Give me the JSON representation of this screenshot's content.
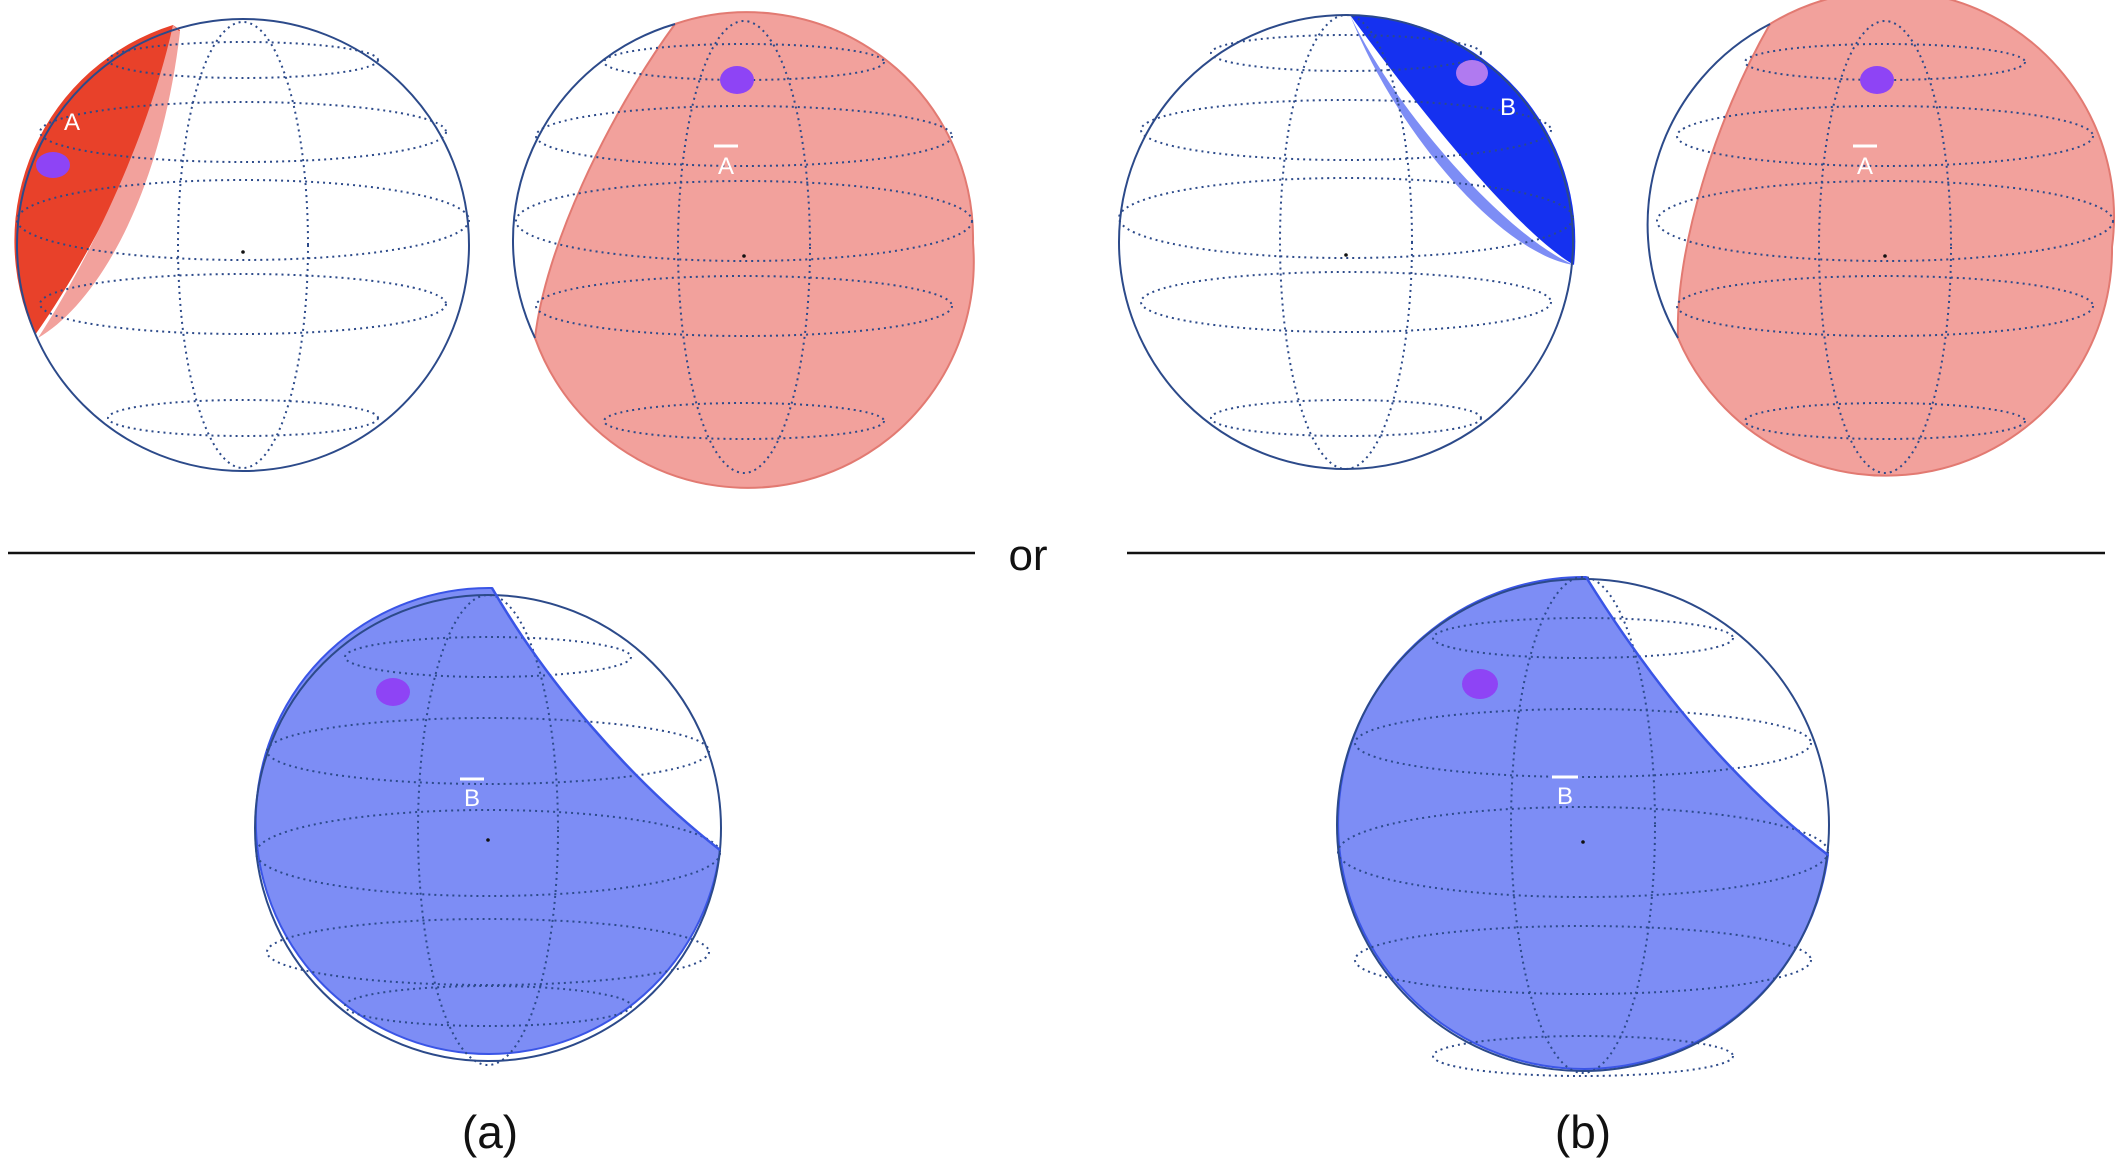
{
  "colors": {
    "red_solid": "#e8412a",
    "red_translucent": "#f2a19c",
    "red_edge": "#e27a72",
    "blue_solid": "#1531f0",
    "blue_translucent": "#7d8df5",
    "blue_edge": "#3a55e6",
    "dot": "#8e44f5",
    "grid": "#2c4a8a",
    "text": "#111111",
    "label": "#ffffff"
  },
  "divider": {
    "text": "or"
  },
  "captions": {
    "a": "(a)",
    "b": "(b)"
  },
  "spheres": [
    {
      "id": "a-top-left",
      "label": "A",
      "overbar": false,
      "fill": "red_cap"
    },
    {
      "id": "a-top-right",
      "label": "A",
      "overbar": true,
      "fill": "red_complement"
    },
    {
      "id": "b-top-left",
      "label": "B",
      "overbar": false,
      "fill": "blue_cap"
    },
    {
      "id": "b-top-right",
      "label": "A",
      "overbar": true,
      "fill": "red_complement"
    },
    {
      "id": "a-bottom",
      "label": "B",
      "overbar": true,
      "fill": "blue_complement"
    },
    {
      "id": "b-bottom",
      "label": "B",
      "overbar": true,
      "fill": "blue_complement"
    }
  ]
}
